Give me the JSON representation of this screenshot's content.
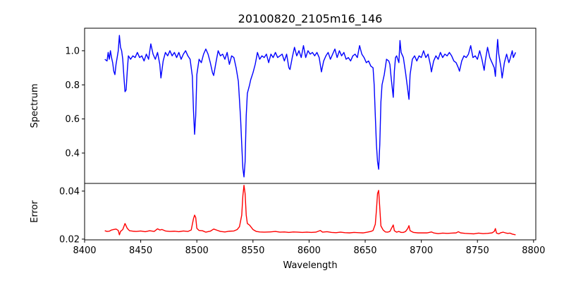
{
  "chart_data": [
    {
      "type": "line",
      "title": "20100820_2105m16_146",
      "xlabel": "",
      "ylabel": "Spectrum",
      "xlim": [
        8400,
        8802
      ],
      "ylim": [
        0.222,
        1.132
      ],
      "grid": false,
      "color": "#0000ff",
      "yticks": [
        0.4,
        0.6,
        0.8,
        1.0
      ],
      "ytick_labels": [
        "0.4",
        "0.6",
        "0.8",
        "1.0"
      ],
      "x": [
        8418,
        8420,
        8421,
        8422,
        8423,
        8424,
        8425,
        8426,
        8427,
        8428,
        8429,
        8430,
        8431,
        8432,
        8433,
        8434,
        8435,
        8436,
        8437,
        8438,
        8439,
        8441,
        8443,
        8445,
        8447,
        8449,
        8451,
        8453,
        8455,
        8457,
        8459,
        8461,
        8463,
        8465,
        8467,
        8468,
        8470,
        8472,
        8474,
        8476,
        8478,
        8480,
        8482,
        8484,
        8486,
        8488,
        8490,
        8492,
        8494,
        8496,
        8497,
        8498,
        8499,
        8500,
        8502,
        8504,
        8506,
        8508,
        8510,
        8512,
        8514,
        8515,
        8517,
        8519,
        8521,
        8523,
        8525,
        8527,
        8529,
        8531,
        8533,
        8535,
        8537,
        8539,
        8540,
        8541,
        8542,
        8543,
        8544,
        8545,
        8547,
        8548,
        8550,
        8552,
        8554,
        8556,
        8558,
        8560,
        8562,
        8564,
        8566,
        8568,
        8570,
        8572,
        8574,
        8576,
        8578,
        8580,
        8582,
        8583,
        8585,
        8587,
        8589,
        8591,
        8593,
        8595,
        8597,
        8599,
        8601,
        8603,
        8605,
        8607,
        8609,
        8611,
        8613,
        8615,
        8617,
        8619,
        8621,
        8623,
        8625,
        8627,
        8629,
        8631,
        8633,
        8635,
        8637,
        8639,
        8641,
        8643,
        8645,
        8647,
        8649,
        8651,
        8653,
        8655,
        8657,
        8658,
        8659,
        8660,
        8661,
        8662,
        8663,
        8664,
        8665,
        8667,
        8669,
        8671,
        8672,
        8673,
        8675,
        8676,
        8677,
        8678,
        8680,
        8681,
        8682,
        8684,
        8686,
        8689,
        8690,
        8692,
        8694,
        8696,
        8698,
        8700,
        8702,
        8704,
        8706,
        8708,
        8709,
        8711,
        8713,
        8715,
        8717,
        8719,
        8721,
        8723,
        8725,
        8727,
        8729,
        8731,
        8733,
        8734,
        8736,
        8738,
        8740,
        8742,
        8744,
        8746,
        8748,
        8750,
        8752,
        8754,
        8756,
        8757,
        8759,
        8761,
        8763,
        8765,
        8766,
        8767,
        8768,
        8769,
        8771,
        8772,
        8774,
        8776,
        8778,
        8779,
        8781,
        8782,
        8784
      ],
      "y": [
        0.95,
        0.94,
        0.99,
        0.95,
        1.0,
        0.96,
        0.93,
        0.88,
        0.86,
        0.92,
        0.96,
        1.0,
        1.09,
        1.02,
        1.0,
        0.95,
        0.85,
        0.76,
        0.77,
        0.88,
        0.97,
        0.95,
        0.97,
        0.96,
        0.99,
        0.96,
        0.97,
        0.94,
        0.98,
        0.95,
        1.04,
        0.98,
        0.95,
        0.99,
        0.92,
        0.84,
        0.94,
        0.99,
        0.97,
        1.0,
        0.97,
        0.99,
        0.96,
        0.99,
        0.95,
        0.98,
        1.0,
        0.97,
        0.95,
        0.85,
        0.65,
        0.51,
        0.62,
        0.86,
        0.95,
        0.93,
        0.98,
        1.01,
        0.98,
        0.93,
        0.87,
        0.855,
        0.93,
        1.0,
        0.97,
        0.98,
        0.95,
        0.99,
        0.92,
        0.97,
        0.96,
        0.9,
        0.82,
        0.6,
        0.45,
        0.31,
        0.26,
        0.35,
        0.62,
        0.75,
        0.8,
        0.83,
        0.87,
        0.92,
        0.99,
        0.95,
        0.97,
        0.96,
        0.98,
        0.93,
        0.98,
        0.96,
        0.99,
        0.96,
        0.97,
        0.98,
        0.94,
        0.98,
        0.9,
        0.89,
        0.96,
        1.02,
        0.97,
        1.0,
        0.96,
        1.03,
        0.96,
        1.0,
        0.98,
        0.99,
        0.97,
        0.99,
        0.96,
        0.876,
        0.94,
        0.97,
        0.99,
        0.95,
        0.98,
        1.01,
        0.96,
        1.0,
        0.97,
        0.99,
        0.95,
        0.96,
        0.94,
        0.97,
        0.98,
        0.96,
        1.03,
        0.98,
        0.96,
        0.93,
        0.94,
        0.91,
        0.9,
        0.8,
        0.62,
        0.45,
        0.35,
        0.305,
        0.45,
        0.7,
        0.8,
        0.86,
        0.95,
        0.94,
        0.92,
        0.85,
        0.727,
        0.88,
        0.96,
        0.97,
        0.93,
        1.06,
        0.99,
        0.96,
        0.87,
        0.715,
        0.86,
        0.95,
        0.97,
        0.94,
        0.97,
        0.96,
        1.0,
        0.96,
        0.98,
        0.92,
        0.876,
        0.94,
        0.97,
        0.95,
        0.99,
        0.96,
        0.98,
        0.97,
        0.99,
        0.97,
        0.94,
        0.93,
        0.9,
        0.88,
        0.94,
        0.97,
        0.96,
        0.98,
        1.03,
        0.96,
        0.97,
        0.95,
        1.0,
        0.95,
        0.885,
        0.94,
        1.02,
        0.96,
        0.93,
        0.9,
        0.85,
        0.97,
        1.066,
        0.98,
        0.9,
        0.84,
        0.93,
        0.98,
        0.93,
        0.95,
        1.0,
        0.96,
        0.99
      ]
    },
    {
      "type": "line",
      "title": "",
      "xlabel": "Wavelength",
      "ylabel": "Error",
      "xlim": [
        8400,
        8802
      ],
      "ylim": [
        0.0197,
        0.0432
      ],
      "grid": false,
      "color": "#ff0000",
      "xticks": [
        8400,
        8450,
        8500,
        8550,
        8600,
        8650,
        8700,
        8750,
        8800
      ],
      "xtick_labels": [
        "8400",
        "8450",
        "8500",
        "8550",
        "8600",
        "8650",
        "8700",
        "8750",
        "8800"
      ],
      "yticks": [
        0.02,
        0.04
      ],
      "ytick_labels": [
        "0.02",
        "0.04"
      ],
      "x": [
        8418,
        8420,
        8422,
        8424,
        8426,
        8428,
        8430,
        8431,
        8432,
        8434,
        8436,
        8438,
        8440,
        8443,
        8446,
        8450,
        8454,
        8458,
        8462,
        8465,
        8467,
        8469,
        8472,
        8476,
        8480,
        8484,
        8488,
        8492,
        8495,
        8497,
        8498,
        8499,
        8500,
        8502,
        8505,
        8508,
        8512,
        8515,
        8518,
        8521,
        8525,
        8529,
        8533,
        8536,
        8538,
        8540,
        8541,
        8542,
        8543,
        8544,
        8545,
        8547,
        8550,
        8553,
        8556,
        8560,
        8565,
        8570,
        8574,
        8578,
        8582,
        8586,
        8590,
        8594,
        8598,
        8602,
        8606,
        8610,
        8612,
        8616,
        8620,
        8624,
        8628,
        8632,
        8636,
        8640,
        8644,
        8648,
        8652,
        8655,
        8657,
        8659,
        8660,
        8661,
        8662,
        8663,
        8664,
        8666,
        8668,
        8670,
        8672,
        8674,
        8675,
        8676,
        8678,
        8680,
        8682,
        8684,
        8686,
        8688,
        8689,
        8690,
        8693,
        8697,
        8701,
        8705,
        8709,
        8711,
        8715,
        8719,
        8723,
        8727,
        8731,
        8733,
        8735,
        8739,
        8743,
        8747,
        8751,
        8755,
        8759,
        8763,
        8765,
        8766,
        8767,
        8769,
        8771,
        8773,
        8775,
        8777,
        8779,
        8781,
        8783,
        8784
      ],
      "y": [
        0.0235,
        0.0232,
        0.0233,
        0.0238,
        0.024,
        0.0242,
        0.0236,
        0.0218,
        0.0232,
        0.024,
        0.0265,
        0.0245,
        0.0235,
        0.0233,
        0.0232,
        0.0234,
        0.0231,
        0.0235,
        0.0232,
        0.0243,
        0.0238,
        0.024,
        0.0234,
        0.0232,
        0.0233,
        0.0231,
        0.0234,
        0.0232,
        0.0238,
        0.0285,
        0.03,
        0.029,
        0.0245,
        0.0236,
        0.0235,
        0.0229,
        0.0233,
        0.0242,
        0.0237,
        0.0232,
        0.023,
        0.0233,
        0.0234,
        0.024,
        0.0252,
        0.03,
        0.038,
        0.0424,
        0.039,
        0.03,
        0.0265,
        0.0258,
        0.024,
        0.0232,
        0.023,
        0.0229,
        0.023,
        0.0232,
        0.0229,
        0.023,
        0.0228,
        0.023,
        0.0229,
        0.0228,
        0.0229,
        0.0228,
        0.0229,
        0.0236,
        0.0229,
        0.0231,
        0.0228,
        0.0227,
        0.0229,
        0.0227,
        0.0226,
        0.0228,
        0.0227,
        0.0226,
        0.0229,
        0.0232,
        0.0236,
        0.0262,
        0.032,
        0.039,
        0.0403,
        0.033,
        0.0255,
        0.0238,
        0.023,
        0.0229,
        0.0232,
        0.025,
        0.0259,
        0.0235,
        0.0229,
        0.0232,
        0.0228,
        0.0228,
        0.0232,
        0.0245,
        0.0256,
        0.0235,
        0.0228,
        0.0226,
        0.0226,
        0.0226,
        0.023,
        0.0226,
        0.0223,
        0.0225,
        0.0224,
        0.0225,
        0.0226,
        0.0231,
        0.0226,
        0.0224,
        0.0223,
        0.0222,
        0.0225,
        0.0223,
        0.0224,
        0.0226,
        0.0232,
        0.0244,
        0.0225,
        0.0222,
        0.0227,
        0.0229,
        0.0226,
        0.0224,
        0.0225,
        0.0221,
        0.0219,
        0.0218
      ]
    }
  ]
}
